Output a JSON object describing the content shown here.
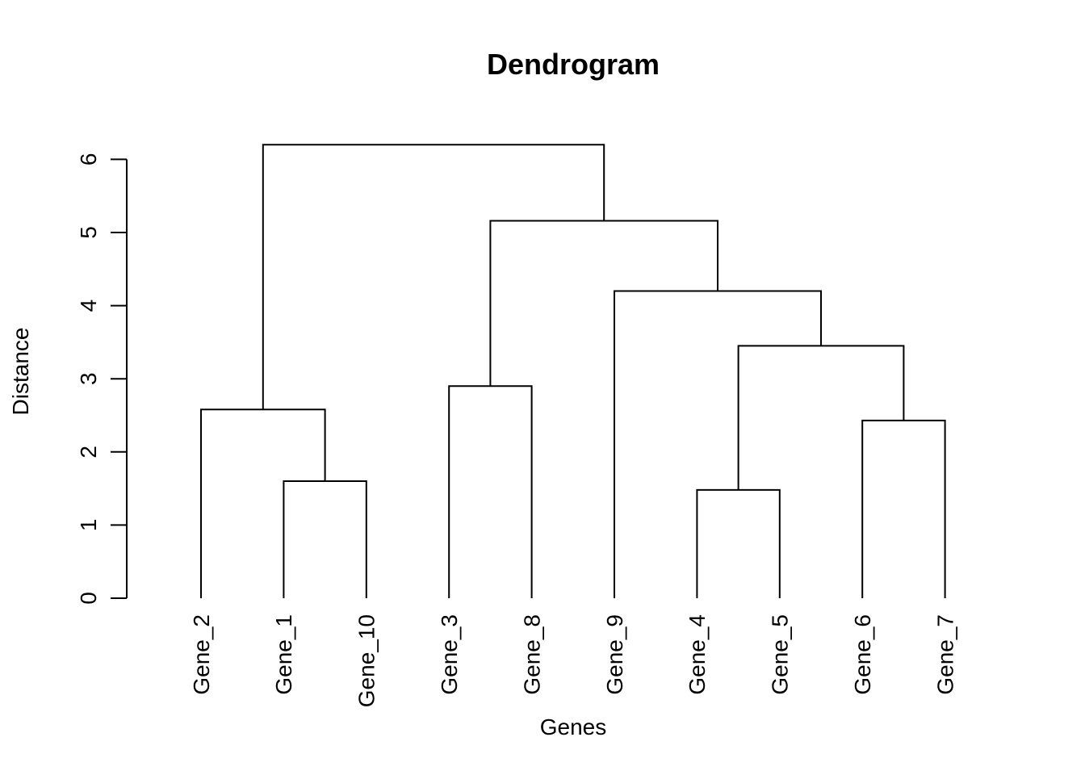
{
  "chart_data": {
    "type": "dendrogram",
    "title": "Dendrogram",
    "xlabel": "Genes",
    "ylabel": "Distance",
    "ylim": [
      0,
      6
    ],
    "yticks": [
      0,
      1,
      2,
      3,
      4,
      5,
      6
    ],
    "ytick_labels": [
      "0",
      "1",
      "2",
      "3",
      "4",
      "5",
      "6"
    ],
    "leaves": [
      "Gene_2",
      "Gene_1",
      "Gene_10",
      "Gene_3",
      "Gene_8",
      "Gene_9",
      "Gene_4",
      "Gene_5",
      "Gene_6",
      "Gene_7"
    ],
    "merges": [
      {
        "left": "Gene_1",
        "right": "Gene_10",
        "height": 1.6
      },
      {
        "left": "Gene_2",
        "right": "Gene_1+Gene_10",
        "height": 2.58
      },
      {
        "left": "Gene_3",
        "right": "Gene_8",
        "height": 2.9
      },
      {
        "left": "Gene_4",
        "right": "Gene_5",
        "height": 1.48
      },
      {
        "left": "Gene_6",
        "right": "Gene_7",
        "height": 2.43
      },
      {
        "left": "Gene_4+Gene_5",
        "right": "Gene_6+Gene_7",
        "height": 3.45
      },
      {
        "left": "Gene_9",
        "right": "Gene_4+Gene_5+Gene_6+Gene_7",
        "height": 4.2
      },
      {
        "left": "Gene_3+Gene_8",
        "right": "Gene_9+Gene_4+Gene_5+Gene_6+Gene_7",
        "height": 5.16
      },
      {
        "left": "Gene_2+Gene_1+Gene_10",
        "right": "Gene_3+Gene_8+Gene_9+Gene_4+Gene_5+Gene_6+Gene_7",
        "height": 6.2
      }
    ]
  }
}
